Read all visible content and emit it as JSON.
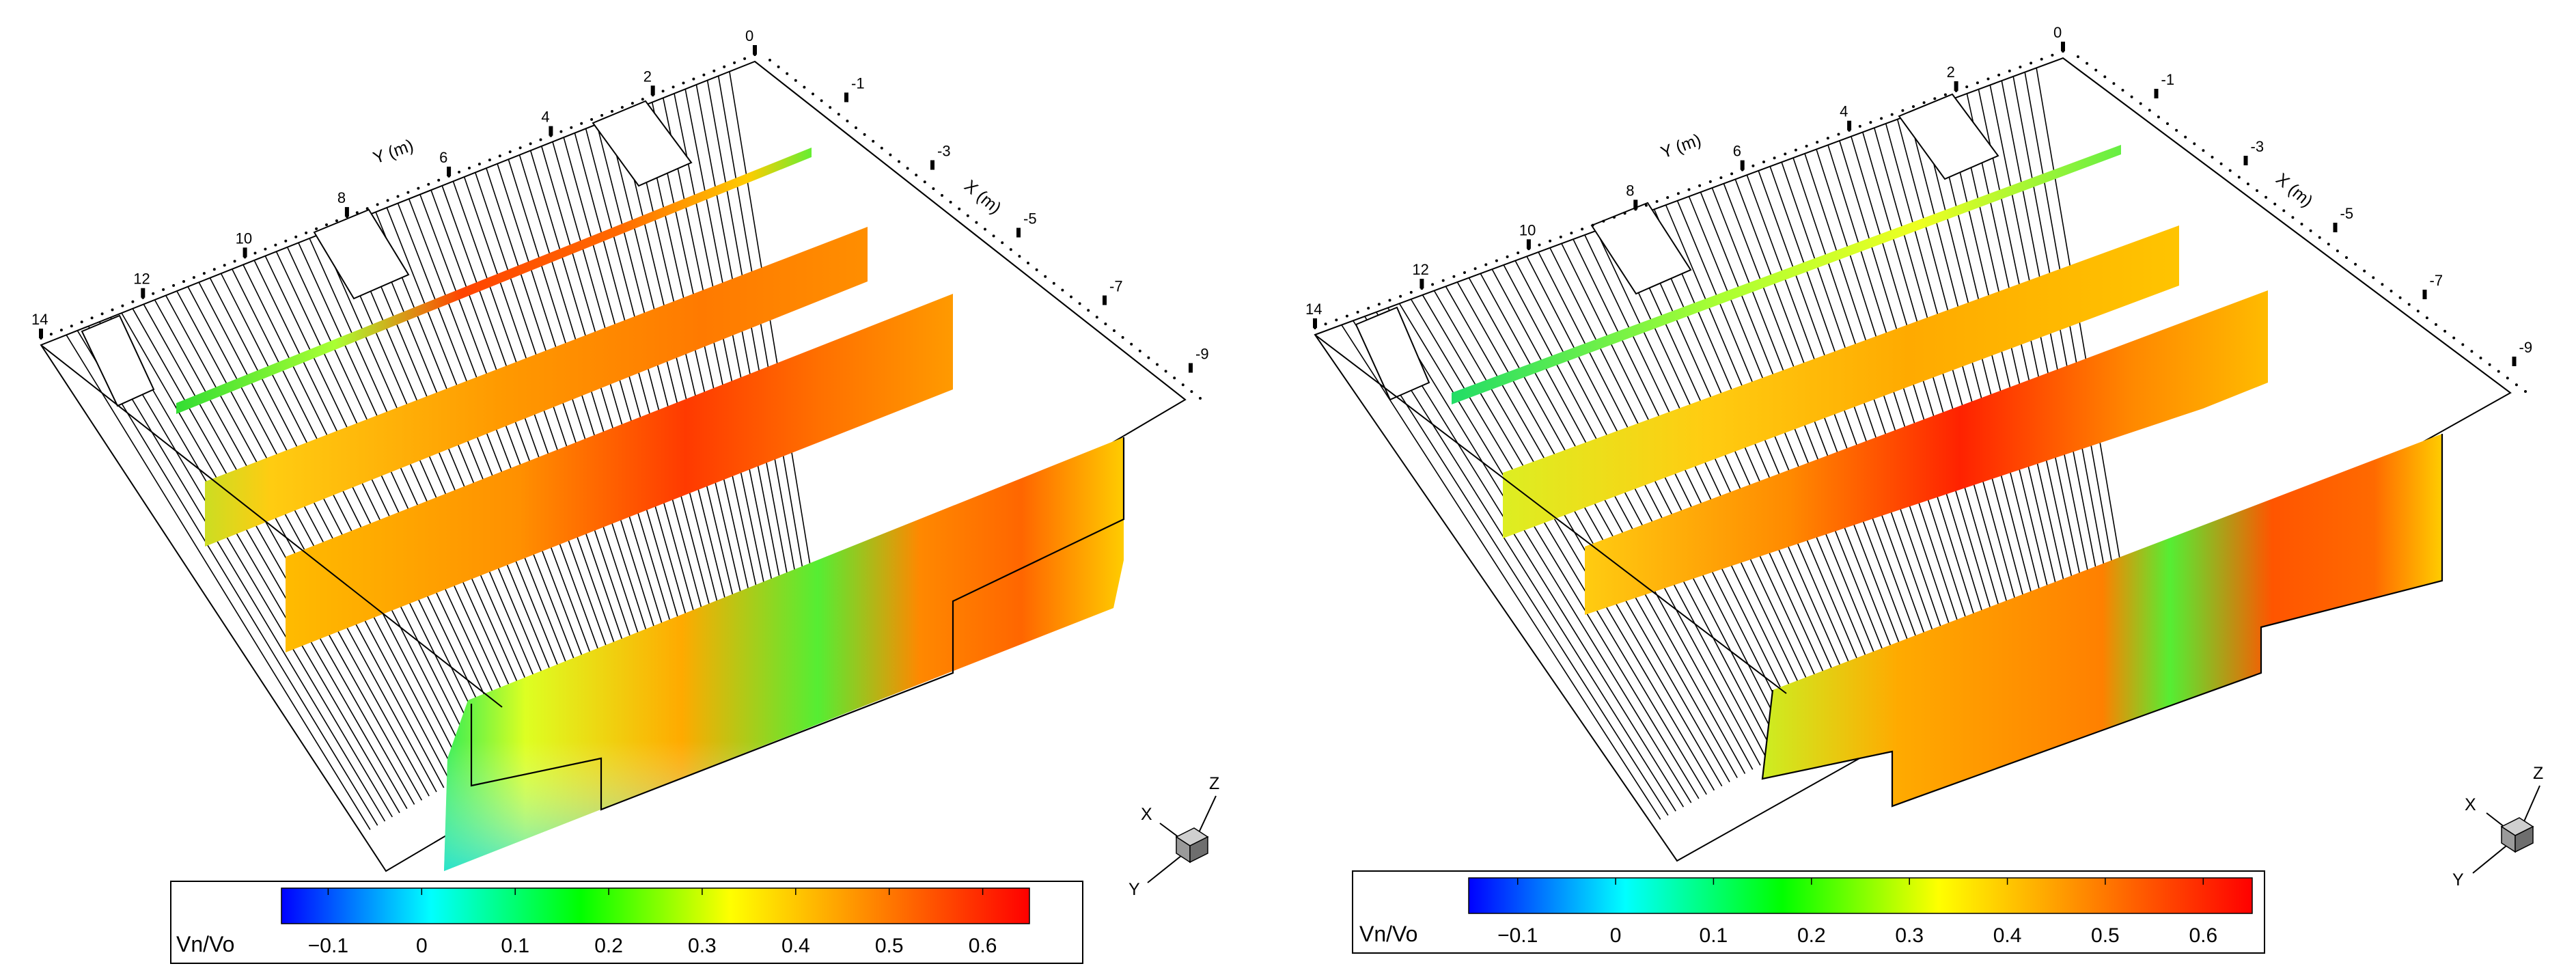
{
  "panels": [
    {
      "id": "left",
      "y_axis_title": "Y (m)",
      "x_axis_title": "X (m)",
      "y_ticks": [
        "0",
        "2",
        "4",
        "6",
        "8",
        "10",
        "12",
        "14"
      ],
      "x_ticks": [
        "-1",
        "-3",
        "-5",
        "-7",
        "-9"
      ],
      "colorbar": {
        "title": "Vn/Vo",
        "ticks": [
          "-0.1",
          "0",
          "0.1",
          "0.2",
          "0.3",
          "0.4",
          "0.5",
          "0.6"
        ],
        "min": -0.15,
        "max": 0.65
      },
      "triad": {
        "x": "X",
        "y": "Y",
        "z": "Z"
      }
    },
    {
      "id": "right",
      "y_axis_title": "Y (m)",
      "x_axis_title": "X (m)",
      "y_ticks": [
        "0",
        "2",
        "4",
        "6",
        "8",
        "10",
        "12",
        "14"
      ],
      "x_ticks": [
        "-1",
        "-3",
        "-5",
        "-7",
        "-9"
      ],
      "colorbar": {
        "title": "Vn/Vo",
        "ticks": [
          "-0.1",
          "0",
          "0.1",
          "0.2",
          "0.3",
          "0.4",
          "0.5",
          "0.6"
        ],
        "min": -0.15,
        "max": 0.65
      },
      "triad": {
        "x": "X",
        "y": "Y",
        "z": "Z"
      }
    }
  ],
  "colors": {
    "colormap": [
      "#0000ff",
      "#00ffff",
      "#00ff00",
      "#ffff00",
      "#ff8000",
      "#ff0000"
    ],
    "grid_lines": "#000000",
    "background": "#ffffff"
  }
}
